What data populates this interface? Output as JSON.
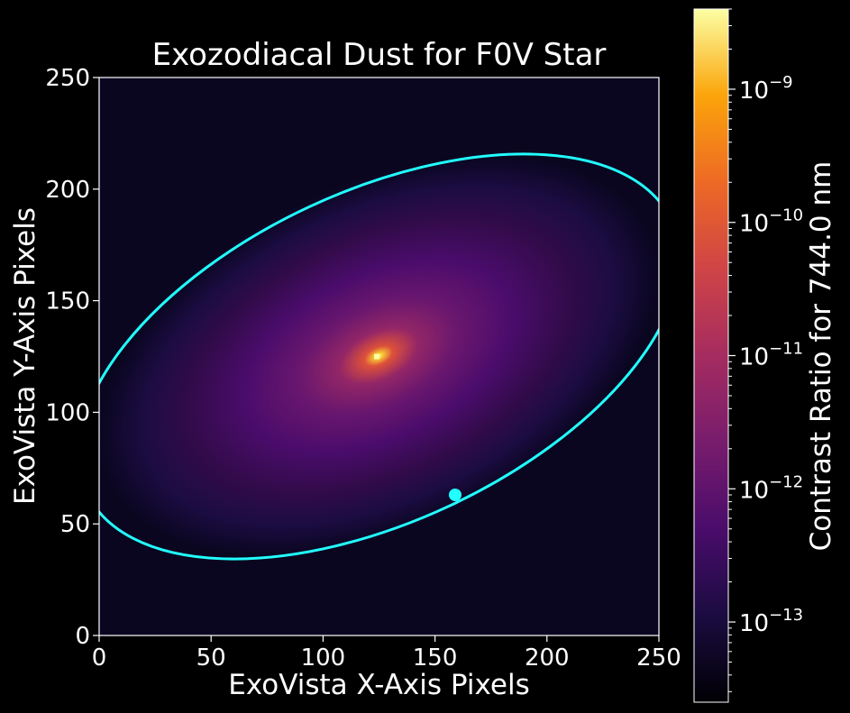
{
  "chart_data": {
    "type": "heatmap",
    "title": "Exozodiacal Dust for F0V Star",
    "xlabel": "ExoVista X-Axis Pixels",
    "ylabel": "ExoVista Y-Axis Pixels",
    "xlim": [
      0,
      250
    ],
    "ylim": [
      0,
      250
    ],
    "xticks": [
      0,
      50,
      100,
      150,
      200,
      250
    ],
    "yticks": [
      0,
      50,
      100,
      150,
      200,
      250
    ],
    "colormap": "inferno",
    "star_position": [
      124,
      125
    ],
    "orbit_ellipse": {
      "center": [
        125,
        125
      ],
      "semi_major": 144,
      "semi_minor": 74,
      "angle_deg": 25,
      "color": "#22ffff"
    },
    "planet_position": [
      159,
      63
    ],
    "colorbar": {
      "label": "Contrast Ratio for 744.0 nm",
      "scale": "log",
      "range": [
        2.5e-14,
        4e-09
      ],
      "ticks": [
        1e-13,
        1e-12,
        1e-11,
        1e-10,
        1e-09
      ],
      "tick_labels": [
        {
          "base": "10",
          "exp": "−13"
        },
        {
          "base": "10",
          "exp": "−12"
        },
        {
          "base": "10",
          "exp": "−11"
        },
        {
          "base": "10",
          "exp": "−10"
        },
        {
          "base": "10",
          "exp": "−9"
        }
      ]
    }
  }
}
